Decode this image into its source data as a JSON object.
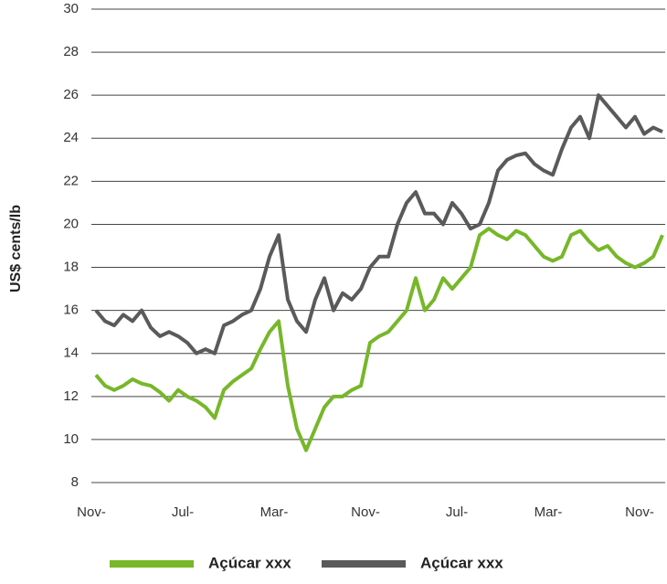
{
  "chart_data": {
    "type": "line",
    "ylabel": "US$ cents/lb",
    "categories": [
      "Nov-",
      null,
      null,
      null,
      null,
      null,
      null,
      null,
      null,
      null,
      "Jul-",
      null,
      null,
      null,
      null,
      null,
      null,
      null,
      null,
      null,
      "Mar-",
      null,
      null,
      null,
      null,
      null,
      null,
      null,
      null,
      null,
      "Nov-",
      null,
      null,
      null,
      null,
      null,
      null,
      null,
      null,
      null,
      "Jul-",
      null,
      null,
      null,
      null,
      null,
      null,
      null,
      null,
      null,
      "Mar-",
      null,
      null,
      null,
      null,
      null,
      null,
      null,
      null,
      null,
      "Nov-",
      null,
      null
    ],
    "series": [
      {
        "name": "Açúcar xxx",
        "color": "#77b72a",
        "values": [
          13,
          12.5,
          12.3,
          12.5,
          12.8,
          12.6,
          12.5,
          12.2,
          11.8,
          12.3,
          12,
          11.8,
          11.5,
          11,
          12.3,
          12.7,
          13,
          13.3,
          14.2,
          15,
          15.5,
          12.5,
          10.5,
          9.5,
          10.5,
          11.5,
          12,
          12,
          12.3,
          12.5,
          14.5,
          14.8,
          15,
          15.5,
          16,
          17.5,
          16,
          16.5,
          17.5,
          17,
          17.5,
          18,
          19.5,
          19.8,
          19.5,
          19.3,
          19.7,
          19.5,
          19,
          18.5,
          18.3,
          18.5,
          19.5,
          19.7,
          19.2,
          18.8,
          19,
          18.5,
          18.2,
          18,
          18.2,
          18.5,
          19.5
        ]
      },
      {
        "name": "Açúcar xxx",
        "color": "#5a5a5a",
        "values": [
          16,
          15.5,
          15.3,
          15.8,
          15.5,
          16,
          15.2,
          14.8,
          15,
          14.8,
          14.5,
          14,
          14.2,
          14,
          15.3,
          15.5,
          15.8,
          16,
          17,
          18.5,
          19.5,
          16.5,
          15.5,
          15,
          16.5,
          17.5,
          16,
          16.8,
          16.5,
          17,
          18,
          18.5,
          18.5,
          20,
          21,
          21.5,
          20.5,
          20.5,
          20,
          21,
          20.5,
          19.8,
          20,
          21,
          22.5,
          23,
          23.2,
          23.3,
          22.8,
          22.5,
          22.3,
          23.5,
          24.5,
          25,
          24,
          26,
          25.5,
          25,
          24.5,
          25,
          24.2,
          24.5,
          24.3
        ]
      }
    ],
    "ylim": [
      8,
      30
    ],
    "yticks": [
      8,
      10,
      12,
      14,
      16,
      18,
      20,
      22,
      24,
      26,
      28,
      30
    ],
    "grid": true
  }
}
